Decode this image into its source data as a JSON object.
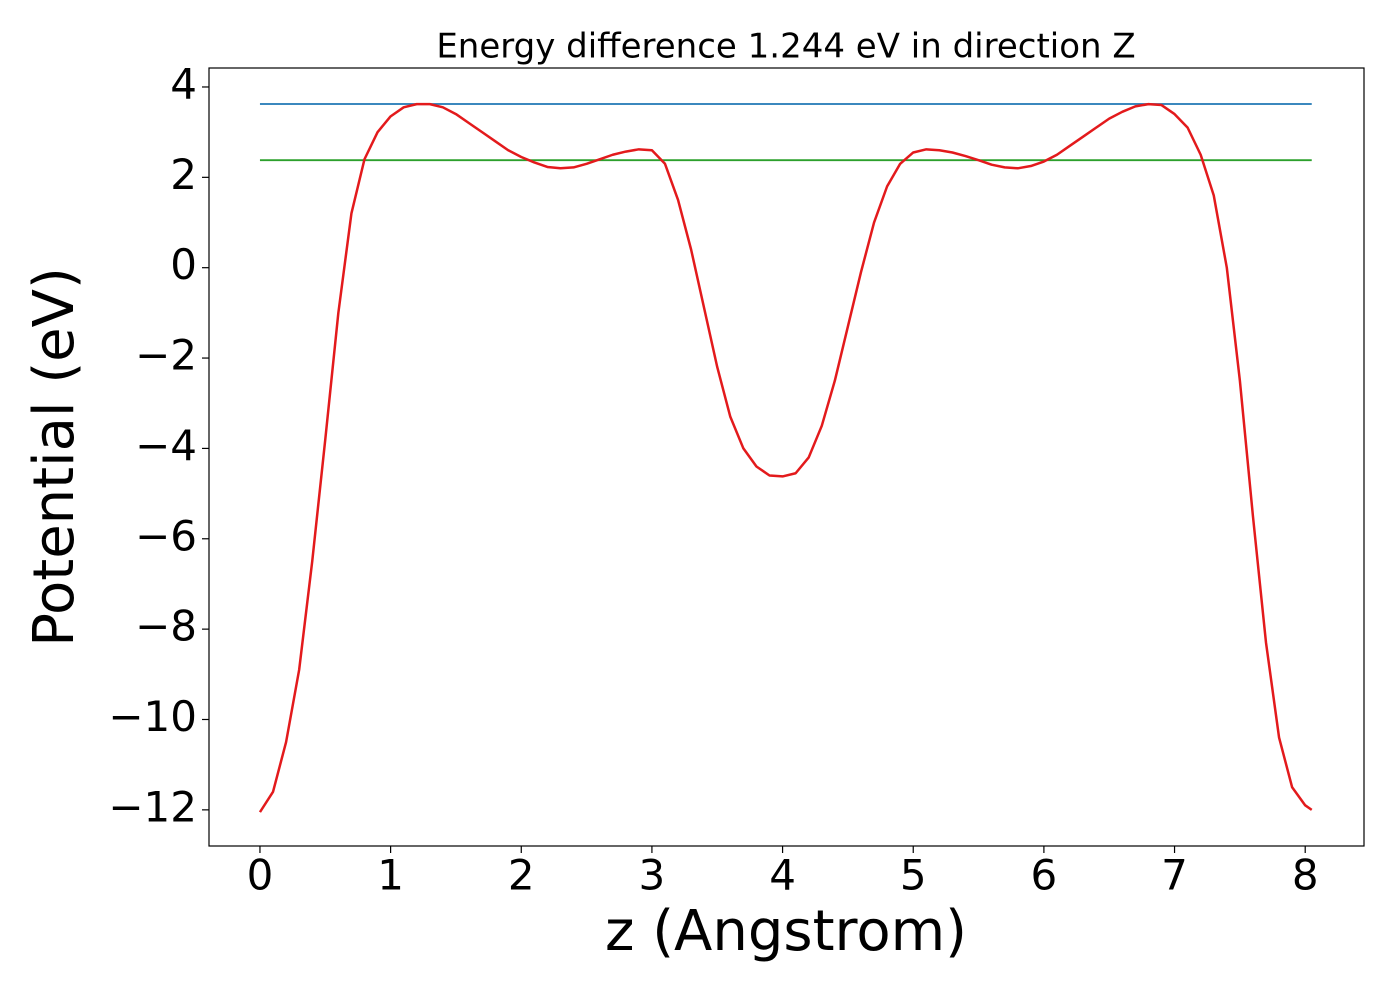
{
  "chart_data": {
    "type": "line",
    "title": "Energy difference 1.244 eV in direction Z",
    "xlabel": "z (Angstrom)",
    "ylabel": "Potential (eV)",
    "xlim": [
      -0.39,
      8.45
    ],
    "ylim": [
      -12.8,
      4.42
    ],
    "xticks": [
      0,
      1,
      2,
      3,
      4,
      5,
      6,
      7,
      8
    ],
    "yticks": [
      {
        "value": -12,
        "label": "−12"
      },
      {
        "value": -10,
        "label": "−10"
      },
      {
        "value": -8,
        "label": "−8"
      },
      {
        "value": -6,
        "label": "−6"
      },
      {
        "value": -4,
        "label": "−4"
      },
      {
        "value": -2,
        "label": "−2"
      },
      0,
      2,
      4
    ],
    "series": [
      {
        "color": "#1f77b4",
        "x": [
          0,
          8.05
        ],
        "values": [
          3.624,
          3.624
        ]
      },
      {
        "color": "#2ca02c",
        "x": [
          0,
          8.05
        ],
        "values": [
          2.38,
          2.38
        ]
      },
      {
        "color": "#e31a1c",
        "x": [
          0,
          0.1,
          0.2,
          0.3,
          0.4,
          0.5,
          0.6,
          0.7,
          0.8,
          0.9,
          1.0,
          1.1,
          1.2,
          1.3,
          1.4,
          1.5,
          1.6,
          1.7,
          1.8,
          1.9,
          2.0,
          2.1,
          2.2,
          2.3,
          2.4,
          2.5,
          2.6,
          2.7,
          2.8,
          2.9,
          3.0,
          3.1,
          3.2,
          3.3,
          3.4,
          3.5,
          3.6,
          3.7,
          3.8,
          3.9,
          4.0,
          4.1,
          4.2,
          4.3,
          4.4,
          4.5,
          4.6,
          4.7,
          4.8,
          4.9,
          5.0,
          5.1,
          5.2,
          5.3,
          5.4,
          5.5,
          5.6,
          5.7,
          5.8,
          5.9,
          6.0,
          6.1,
          6.2,
          6.3,
          6.4,
          6.5,
          6.6,
          6.7,
          6.8,
          6.9,
          7.0,
          7.1,
          7.2,
          7.3,
          7.4,
          7.5,
          7.6,
          7.7,
          7.8,
          7.9,
          8.0,
          8.05
        ],
        "values": [
          -12.05,
          -11.6,
          -10.5,
          -8.9,
          -6.5,
          -3.8,
          -1.0,
          1.2,
          2.4,
          3.0,
          3.35,
          3.55,
          3.62,
          3.62,
          3.55,
          3.4,
          3.2,
          3.0,
          2.8,
          2.6,
          2.45,
          2.33,
          2.23,
          2.2,
          2.22,
          2.3,
          2.4,
          2.5,
          2.57,
          2.62,
          2.6,
          2.3,
          1.5,
          0.4,
          -0.9,
          -2.2,
          -3.3,
          -4.0,
          -4.4,
          -4.6,
          -4.62,
          -4.55,
          -4.2,
          -3.5,
          -2.5,
          -1.3,
          -0.1,
          1.0,
          1.8,
          2.3,
          2.55,
          2.62,
          2.6,
          2.55,
          2.47,
          2.38,
          2.28,
          2.22,
          2.2,
          2.25,
          2.35,
          2.5,
          2.7,
          2.9,
          3.1,
          3.3,
          3.45,
          3.57,
          3.62,
          3.6,
          3.4,
          3.1,
          2.5,
          1.6,
          0.0,
          -2.5,
          -5.5,
          -8.3,
          -10.4,
          -11.5,
          -11.9,
          -12.0
        ]
      }
    ]
  }
}
